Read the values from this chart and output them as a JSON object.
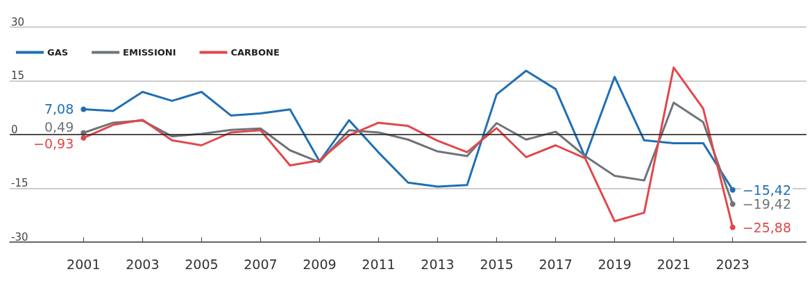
{
  "chart_data": {
    "type": "line",
    "x": [
      2001,
      2002,
      2003,
      2004,
      2005,
      2006,
      2007,
      2008,
      2009,
      2010,
      2011,
      2012,
      2013,
      2014,
      2015,
      2016,
      2017,
      2018,
      2019,
      2020,
      2021,
      2022,
      2023
    ],
    "xlim": [
      1998.5,
      2025.5
    ],
    "xticks": [
      2001,
      2003,
      2005,
      2007,
      2009,
      2011,
      2013,
      2015,
      2017,
      2019,
      2021,
      2023
    ],
    "ylim": [
      -30,
      30
    ],
    "yticks": [
      -30,
      -15,
      0,
      15,
      30
    ],
    "grid": "y",
    "legend": "top left",
    "ref_lines": [
      {
        "axis": "y",
        "value": 0,
        "color": "#222222"
      }
    ],
    "series": [
      {
        "name": "GAS",
        "color": "#1f6fb4",
        "values": [
          7.08,
          6.6,
          11.9,
          9.4,
          11.9,
          5.3,
          5.9,
          7.0,
          -7.5,
          4.0,
          -5.0,
          -13.4,
          -14.5,
          -14.1,
          11.2,
          17.8,
          12.7,
          -6.3,
          16.1,
          -1.6,
          -2.4,
          -2.4,
          -15.42
        ],
        "value_labels": [
          "7,08",
          null,
          null,
          null,
          null,
          null,
          null,
          null,
          null,
          null,
          null,
          null,
          null,
          null,
          null,
          null,
          null,
          null,
          null,
          null,
          null,
          null,
          "−15,42"
        ]
      },
      {
        "name": "EMISSIONI",
        "color": "#6d7479",
        "values": [
          0.49,
          3.3,
          3.9,
          -0.5,
          0.2,
          1.3,
          1.7,
          -4.4,
          -7.7,
          1.2,
          0.6,
          -1.4,
          -4.7,
          -6.0,
          3.2,
          -1.4,
          0.8,
          -6.0,
          -11.5,
          -12.8,
          8.9,
          3.5,
          -19.42
        ],
        "value_labels": [
          "0,49",
          null,
          null,
          null,
          null,
          null,
          null,
          null,
          null,
          null,
          null,
          null,
          null,
          null,
          null,
          null,
          null,
          null,
          null,
          null,
          null,
          null,
          "−19,42"
        ]
      },
      {
        "name": "CARBONE",
        "color": "#e2474b",
        "values": [
          -0.93,
          2.7,
          4.1,
          -1.6,
          -3.0,
          0.6,
          1.2,
          -8.6,
          -7.2,
          -0.2,
          3.3,
          2.4,
          -1.7,
          -4.9,
          1.8,
          -6.3,
          -3.0,
          -6.6,
          -24.2,
          -21.8,
          18.7,
          7.3,
          -25.88
        ],
        "value_labels": [
          "−0,93",
          null,
          null,
          null,
          null,
          null,
          null,
          null,
          null,
          null,
          null,
          null,
          null,
          null,
          null,
          null,
          null,
          null,
          null,
          null,
          null,
          null,
          "−25,88"
        ]
      }
    ]
  }
}
